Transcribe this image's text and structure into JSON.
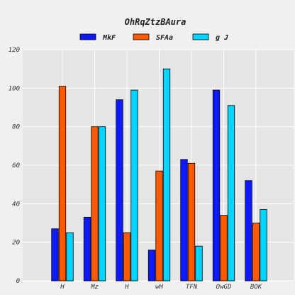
{
  "chart_data": {
    "type": "bar",
    "title": "OhRqZtzBAura",
    "xlabel": "",
    "ylabel": "",
    "categories": [
      "H",
      "Mz",
      "H",
      "wH",
      "TFN",
      "OwGD",
      "BOK"
    ],
    "series": [
      {
        "name": "MkF",
        "color": "#0d1aff",
        "values": [
          27,
          33,
          94,
          16,
          63,
          99,
          52
        ]
      },
      {
        "name": "SFAa",
        "color": "#ff5a00",
        "values": [
          101,
          80,
          25,
          57,
          61,
          34,
          30
        ]
      },
      {
        "name": "g J",
        "color": "#00d4ff",
        "values": [
          25,
          80,
          99,
          110,
          18,
          91,
          37
        ]
      }
    ],
    "ylim": [
      0,
      120
    ],
    "yticks": [
      0,
      20,
      40,
      60,
      80,
      100,
      120
    ],
    "grid": true,
    "legend_position": "top-center"
  }
}
